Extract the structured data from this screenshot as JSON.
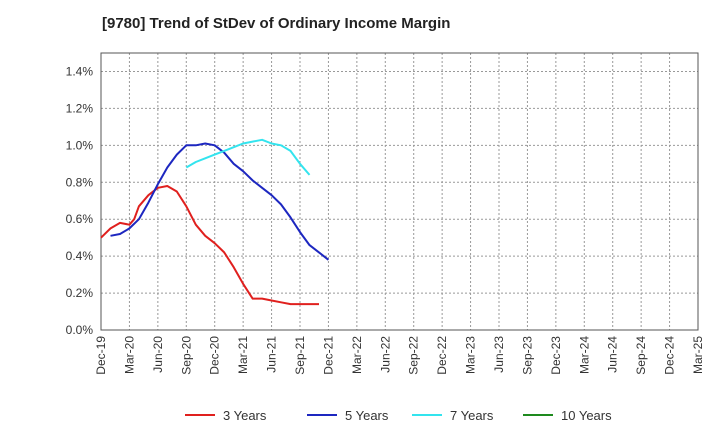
{
  "chart_data": {
    "type": "line",
    "title": "[9780]  Trend of StDev of Ordinary Income Margin",
    "xlabel": "",
    "ylabel": "",
    "x_ticks": [
      "Dec-19",
      "Mar-20",
      "Jun-20",
      "Sep-20",
      "Dec-20",
      "Mar-21",
      "Jun-21",
      "Sep-21",
      "Dec-21",
      "Mar-22",
      "Jun-22",
      "Sep-22",
      "Dec-22",
      "Mar-23",
      "Jun-23",
      "Sep-23",
      "Dec-23",
      "Mar-24",
      "Jun-24",
      "Sep-24",
      "Dec-24",
      "Mar-25"
    ],
    "y_ticks": [
      "0.0%",
      "0.2%",
      "0.4%",
      "0.6%",
      "0.8%",
      "1.0%",
      "1.2%",
      "1.4%"
    ],
    "ylim": [
      0,
      1.5
    ],
    "grid": true,
    "legend_position": "bottom",
    "series": [
      {
        "name": "3 Years",
        "color": "#e0201e",
        "points": [
          [
            0,
            0.5
          ],
          [
            1,
            0.55
          ],
          [
            2,
            0.58
          ],
          [
            3,
            0.57
          ],
          [
            3.5,
            0.6
          ],
          [
            4,
            0.67
          ],
          [
            5,
            0.73
          ],
          [
            6,
            0.77
          ],
          [
            7,
            0.78
          ],
          [
            8,
            0.75
          ],
          [
            9,
            0.67
          ],
          [
            10,
            0.57
          ],
          [
            11,
            0.51
          ],
          [
            12,
            0.47
          ],
          [
            13,
            0.42
          ],
          [
            14,
            0.34
          ],
          [
            15,
            0.25
          ],
          [
            16,
            0.17
          ],
          [
            17,
            0.17
          ],
          [
            18,
            0.16
          ],
          [
            19,
            0.15
          ],
          [
            20,
            0.14
          ],
          [
            21,
            0.14
          ],
          [
            22,
            0.14
          ],
          [
            23,
            0.14
          ]
        ]
      },
      {
        "name": "5 Years",
        "color": "#1d27c0",
        "points": [
          [
            1,
            0.51
          ],
          [
            2,
            0.52
          ],
          [
            3,
            0.55
          ],
          [
            4,
            0.6
          ],
          [
            5,
            0.69
          ],
          [
            6,
            0.79
          ],
          [
            7,
            0.88
          ],
          [
            8,
            0.95
          ],
          [
            9,
            1.0
          ],
          [
            10,
            1.0
          ],
          [
            11,
            1.01
          ],
          [
            12,
            1.0
          ],
          [
            13,
            0.96
          ],
          [
            14,
            0.9
          ],
          [
            15,
            0.86
          ],
          [
            16,
            0.81
          ],
          [
            17,
            0.77
          ],
          [
            18,
            0.73
          ],
          [
            19,
            0.68
          ],
          [
            20,
            0.61
          ],
          [
            21,
            0.53
          ],
          [
            22,
            0.46
          ],
          [
            23,
            0.42
          ],
          [
            24,
            0.38
          ]
        ]
      },
      {
        "name": "7 Years",
        "color": "#33e4ee",
        "points": [
          [
            9,
            0.88
          ],
          [
            10,
            0.91
          ],
          [
            11,
            0.93
          ],
          [
            12,
            0.95
          ],
          [
            13,
            0.97
          ],
          [
            14,
            0.99
          ],
          [
            15,
            1.01
          ],
          [
            16,
            1.02
          ],
          [
            17,
            1.03
          ],
          [
            18,
            1.01
          ],
          [
            19,
            1.0
          ],
          [
            20,
            0.97
          ],
          [
            21,
            0.9
          ],
          [
            22,
            0.84
          ]
        ]
      },
      {
        "name": "10 Years",
        "color": "#1e8a1e",
        "points": []
      }
    ]
  }
}
